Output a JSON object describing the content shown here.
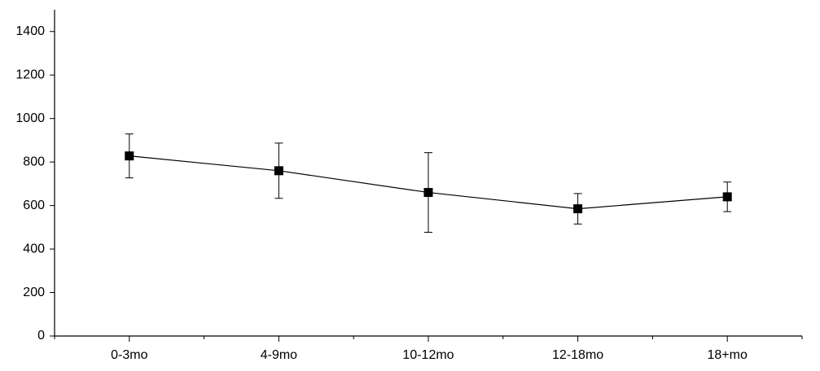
{
  "chart_data": {
    "type": "line",
    "categories": [
      "0-3mo",
      "4-9mo",
      "10-12mo",
      "12-18mo",
      "18+mo"
    ],
    "series": [
      {
        "color": "#000000",
        "values": [
          828,
          760,
          660,
          585,
          640
        ],
        "errors": [
          101,
          127,
          183,
          70,
          68
        ]
      }
    ],
    "ylim": [
      0,
      1500
    ],
    "yticks": [
      0,
      200,
      400,
      600,
      800,
      1000,
      1200,
      1400
    ]
  }
}
